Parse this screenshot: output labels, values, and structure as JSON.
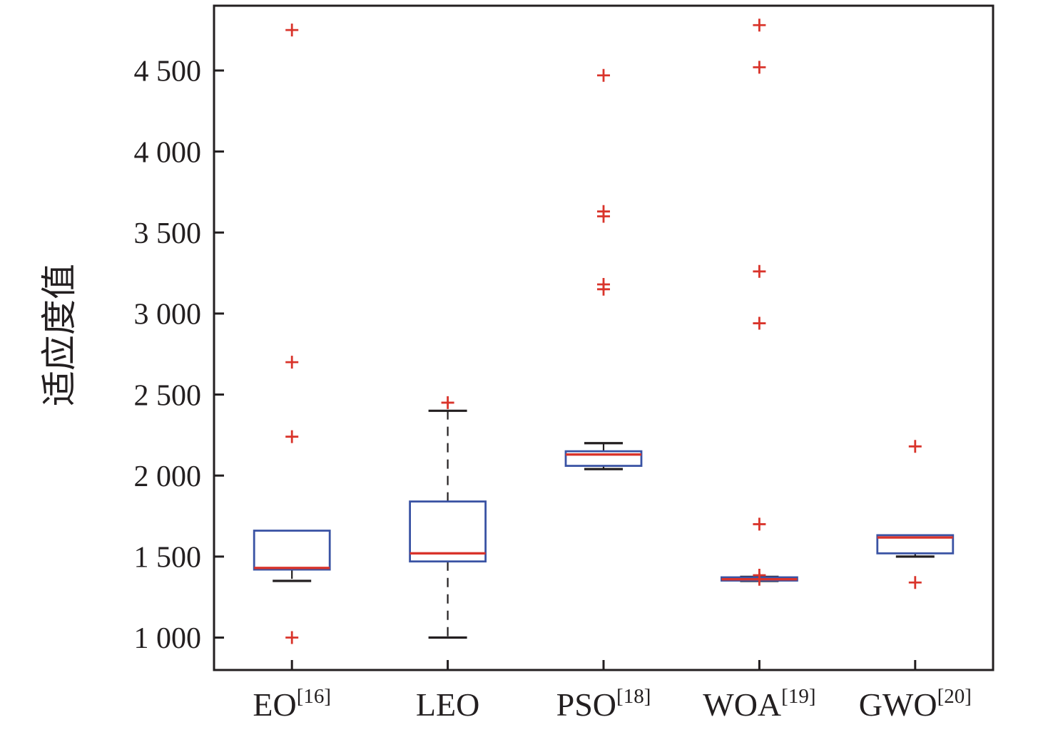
{
  "figure": {
    "background": "#ffffff"
  },
  "chart_data": {
    "type": "boxplot",
    "title": "",
    "xlabel": "",
    "ylabel": "适应度值",
    "ylim": [
      800,
      4900
    ],
    "yticks": [
      1000,
      1500,
      2000,
      2500,
      3000,
      3500,
      4000,
      4500
    ],
    "ytick_labels": [
      "1 000",
      "1 500",
      "2 000",
      "2 500",
      "3 000",
      "3 500",
      "4 000",
      "4 500"
    ],
    "grid": false,
    "legend": "none",
    "categories": [
      {
        "label": "EO",
        "sup": "[16]"
      },
      {
        "label": "LEO",
        "sup": ""
      },
      {
        "label": "PSO",
        "sup": "[18]"
      },
      {
        "label": "WOA",
        "sup": "[19]"
      },
      {
        "label": "GWO",
        "sup": "[20]"
      }
    ],
    "boxes": [
      {
        "name": "EO",
        "whisker_low": 1350,
        "q1": 1420,
        "median": 1430,
        "q3": 1660,
        "whisker_high": 1660,
        "outliers": [
          1000,
          2240,
          2700,
          4750
        ]
      },
      {
        "name": "LEO",
        "whisker_low": 1000,
        "q1": 1470,
        "median": 1520,
        "q3": 1840,
        "whisker_high": 2400,
        "outliers": [
          2450
        ]
      },
      {
        "name": "PSO",
        "whisker_low": 2040,
        "q1": 2060,
        "median": 2130,
        "q3": 2150,
        "whisker_high": 2200,
        "outliers": [
          3150,
          3180,
          3600,
          3630,
          4470
        ]
      },
      {
        "name": "WOA",
        "whisker_low": 1350,
        "q1": 1352,
        "median": 1360,
        "q3": 1372,
        "whisker_high": 1375,
        "outliers": [
          1360,
          1385,
          1700,
          2940,
          3260,
          4520,
          4780
        ]
      },
      {
        "name": "GWO",
        "whisker_low": 1500,
        "q1": 1520,
        "median": 1618,
        "q3": 1632,
        "whisker_high": 1632,
        "outliers": [
          1340,
          2180
        ]
      }
    ],
    "colors": {
      "box": "#3a53a4",
      "median": "#d9342b",
      "outlier": "#d9342b",
      "whisker": "#231f20",
      "axis": "#231f20"
    }
  }
}
